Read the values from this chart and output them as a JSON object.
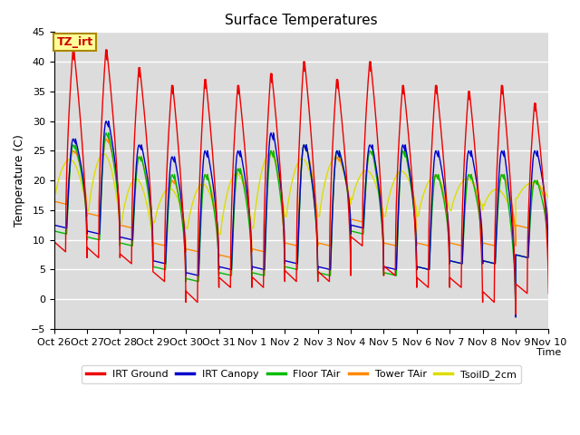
{
  "title": "Surface Temperatures",
  "ylabel": "Temperature (C)",
  "xlabel": "Time",
  "ylim": [
    -5,
    45
  ],
  "yticks": [
    -5,
    0,
    5,
    10,
    15,
    20,
    25,
    30,
    35,
    40,
    45
  ],
  "background_color": "#dcdcdc",
  "plot_bg": "#dcdcdc",
  "annotation_text": "TZ_irt",
  "annotation_bg": "#ffff99",
  "annotation_border": "#ccaa00",
  "legend": [
    {
      "label": "IRT Ground",
      "color": "#ee0000"
    },
    {
      "label": "IRT Canopy",
      "color": "#0000cc"
    },
    {
      "label": "Floor TAir",
      "color": "#00bb00"
    },
    {
      "label": "Tower TAir",
      "color": "#ff8800"
    },
    {
      "label": "TsoilD_2cm",
      "color": "#dddd00"
    }
  ],
  "xtick_labels": [
    "Oct 26",
    "Oct 27",
    "Oct 28",
    "Oct 29",
    "Oct 30",
    "Oct 31",
    "Nov 1",
    "Nov 2",
    "Nov 3",
    "Nov 4",
    "Nov 5",
    "Nov 6",
    "Nov 7",
    "Nov 8",
    "Nov 9",
    "Nov 10"
  ],
  "days": [
    {
      "nm_irt": 8,
      "pk_irt": 42,
      "em_irt": 7,
      "nm_can": 12,
      "pk_can": 27,
      "em_can": 11,
      "nm_fl": 11,
      "pk_fl": 26,
      "em_fl": 10,
      "nm_tw": 16,
      "pk_tw": 25,
      "em_tw": 14,
      "nm_so": 18,
      "pk_so": 26,
      "em_so": 15
    },
    {
      "nm_irt": 7,
      "pk_irt": 42,
      "em_irt": 7,
      "nm_can": 11,
      "pk_can": 30,
      "em_can": 10,
      "nm_fl": 10,
      "pk_fl": 28,
      "em_fl": 9,
      "nm_tw": 14,
      "pk_tw": 27,
      "em_tw": 12,
      "nm_so": 15,
      "pk_so": 27,
      "em_so": 13
    },
    {
      "nm_irt": 6,
      "pk_irt": 39,
      "em_irt": 5,
      "nm_can": 10,
      "pk_can": 26,
      "em_can": 8,
      "nm_fl": 9,
      "pk_fl": 24,
      "em_fl": 7,
      "nm_tw": 12,
      "pk_tw": 24,
      "em_tw": 9,
      "nm_so": 13,
      "pk_so": 23,
      "em_so": 10
    },
    {
      "nm_irt": 3,
      "pk_irt": 36,
      "em_irt": -0.5,
      "nm_can": 6,
      "pk_can": 24,
      "em_can": 4,
      "nm_fl": 5,
      "pk_fl": 21,
      "em_fl": 3,
      "nm_tw": 9,
      "pk_tw": 20,
      "em_tw": 8,
      "nm_so": 13,
      "pk_so": 20,
      "em_so": 12
    },
    {
      "nm_irt": -0.5,
      "pk_irt": 37,
      "em_irt": 2,
      "nm_can": 4,
      "pk_can": 25,
      "em_can": 5,
      "nm_fl": 3,
      "pk_fl": 21,
      "em_fl": 4,
      "nm_tw": 8,
      "pk_tw": 21,
      "em_tw": 7,
      "nm_so": 12,
      "pk_so": 21,
      "em_so": 11
    },
    {
      "nm_irt": 2,
      "pk_irt": 36,
      "em_irt": 2,
      "nm_can": 5,
      "pk_can": 25,
      "em_can": 5,
      "nm_fl": 4,
      "pk_fl": 22,
      "em_fl": 4,
      "nm_tw": 7,
      "pk_tw": 22,
      "em_tw": 8,
      "nm_so": 11,
      "pk_so": 22,
      "em_so": 12
    },
    {
      "nm_irt": 2,
      "pk_irt": 38,
      "em_irt": 3,
      "nm_can": 5,
      "pk_can": 28,
      "em_can": 6,
      "nm_fl": 4,
      "pk_fl": 25,
      "em_fl": 5,
      "nm_tw": 8,
      "pk_tw": 25,
      "em_tw": 9,
      "nm_so": 12,
      "pk_so": 25,
      "em_so": 14
    },
    {
      "nm_irt": 3,
      "pk_irt": 40,
      "em_irt": 3,
      "nm_can": 6,
      "pk_can": 26,
      "em_can": 5,
      "nm_fl": 5,
      "pk_fl": 26,
      "em_fl": 4,
      "nm_tw": 9,
      "pk_tw": 26,
      "em_tw": 9,
      "nm_so": 14,
      "pk_so": 25,
      "em_so": 14
    },
    {
      "nm_irt": 3,
      "pk_irt": 37,
      "em_irt": 4,
      "nm_can": 5,
      "pk_can": 25,
      "em_can": 11,
      "nm_fl": 4,
      "pk_fl": 25,
      "em_fl": 10,
      "nm_tw": 9,
      "pk_tw": 24,
      "em_tw": 12,
      "nm_so": 14,
      "pk_so": 24,
      "em_so": 16
    },
    {
      "nm_irt": 9,
      "pk_irt": 40,
      "em_irt": 4,
      "nm_can": 12,
      "pk_can": 26,
      "em_can": 5,
      "nm_fl": 11,
      "pk_fl": 25,
      "em_fl": 4,
      "nm_tw": 13,
      "pk_tw": 25,
      "em_tw": 9,
      "nm_so": 17,
      "pk_so": 24,
      "em_so": 14
    },
    {
      "nm_irt": 4,
      "pk_irt": 36,
      "em_irt": 2,
      "nm_can": 5,
      "pk_can": 26,
      "em_can": 5,
      "nm_fl": 4,
      "pk_fl": 25,
      "em_fl": 5,
      "nm_tw": 9,
      "pk_tw": 25,
      "em_tw": 9,
      "nm_so": 14,
      "pk_so": 22,
      "em_so": 15
    },
    {
      "nm_irt": 2,
      "pk_irt": 36,
      "em_irt": 2,
      "nm_can": 5,
      "pk_can": 25,
      "em_can": 6,
      "nm_fl": 5,
      "pk_fl": 21,
      "em_fl": 6,
      "nm_tw": 9,
      "pk_tw": 21,
      "em_tw": 9,
      "nm_so": 14,
      "pk_so": 21,
      "em_so": 15
    },
    {
      "nm_irt": 2,
      "pk_irt": 35,
      "em_irt": -0.5,
      "nm_can": 6,
      "pk_can": 25,
      "em_can": 6,
      "nm_fl": 6,
      "pk_fl": 21,
      "em_fl": 6,
      "nm_tw": 9,
      "pk_tw": 21,
      "em_tw": 9,
      "nm_so": 15,
      "pk_so": 21,
      "em_so": 15
    },
    {
      "nm_irt": -0.5,
      "pk_irt": 36,
      "em_irt": -2.5,
      "nm_can": 6,
      "pk_can": 25,
      "em_can": -3,
      "nm_fl": 6,
      "pk_fl": 21,
      "em_fl": -3,
      "nm_tw": 9,
      "pk_tw": 21,
      "em_tw": 9,
      "nm_so": 16,
      "pk_so": 21,
      "em_so": 12
    },
    {
      "nm_irt": 1,
      "pk_irt": 33,
      "em_irt": 1,
      "nm_can": 7,
      "pk_can": 25,
      "em_can": 7,
      "nm_fl": 7,
      "pk_fl": 20,
      "em_fl": 7,
      "nm_tw": 12,
      "pk_tw": 20,
      "em_tw": 12,
      "nm_so": 17,
      "pk_so": 20,
      "em_so": 17
    }
  ]
}
